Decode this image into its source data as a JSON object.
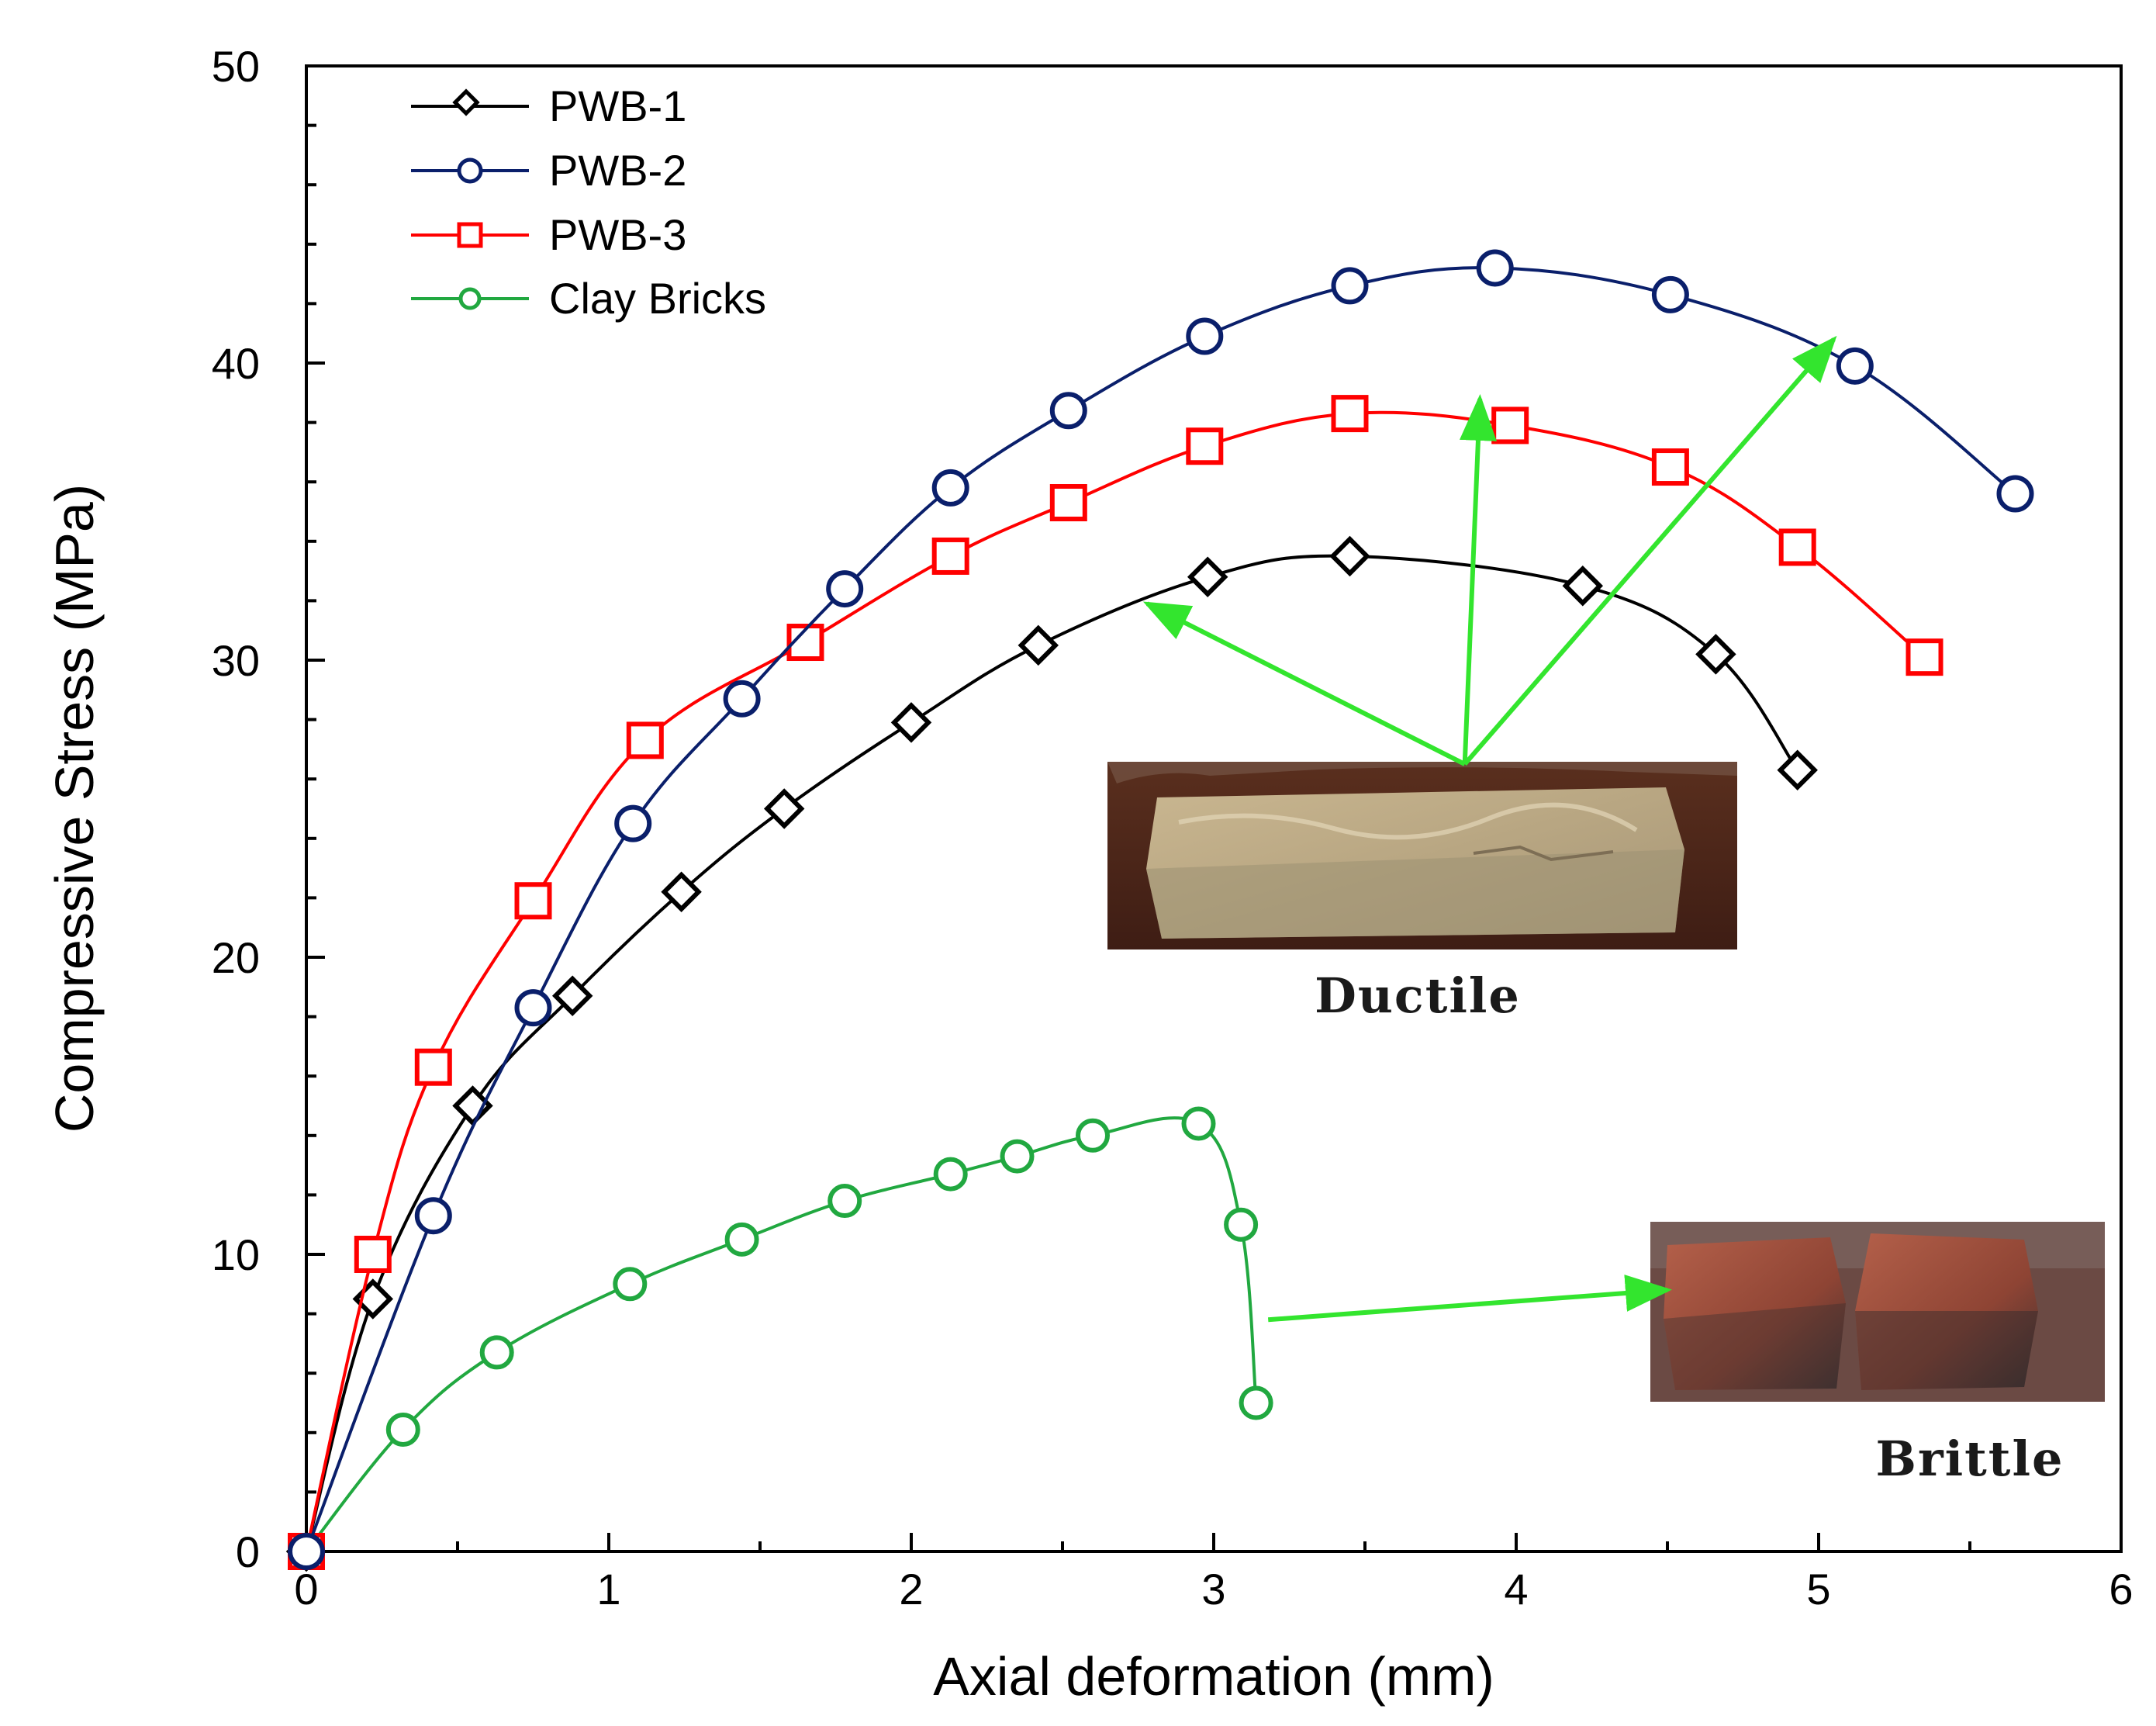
{
  "chart_data": {
    "type": "line",
    "title": "",
    "xlabel": "Axial deformation (mm)",
    "ylabel": "Compressive Stress (MPa)",
    "xlim": [
      0,
      6
    ],
    "ylim": [
      0,
      50
    ],
    "xticks": [
      "0",
      "1",
      "2",
      "3",
      "4",
      "5",
      "6"
    ],
    "yticks": [
      "0",
      "10",
      "20",
      "30",
      "40",
      "50"
    ],
    "grid": false,
    "legend_position": "top-left",
    "series": [
      {
        "name": "PWB-1",
        "color": "#000000",
        "marker": "diamond",
        "points": [
          [
            0,
            0
          ],
          [
            0.22,
            8.5
          ],
          [
            0.55,
            15.0
          ],
          [
            0.88,
            18.7
          ],
          [
            1.24,
            22.2
          ],
          [
            1.58,
            25.0
          ],
          [
            2.0,
            27.9
          ],
          [
            2.42,
            30.5
          ],
          [
            2.98,
            32.8
          ],
          [
            3.45,
            33.5
          ],
          [
            4.22,
            32.5
          ],
          [
            4.66,
            30.2
          ],
          [
            4.93,
            26.3
          ]
        ]
      },
      {
        "name": "PWB-2",
        "color": "#0a1f6b",
        "marker": "circle",
        "points": [
          [
            0,
            0
          ],
          [
            0.42,
            11.3
          ],
          [
            0.75,
            18.3
          ],
          [
            1.08,
            24.5
          ],
          [
            1.44,
            28.7
          ],
          [
            1.78,
            32.4
          ],
          [
            2.13,
            35.8
          ],
          [
            2.52,
            38.4
          ],
          [
            2.97,
            40.9
          ],
          [
            3.45,
            42.6
          ],
          [
            3.93,
            43.2
          ],
          [
            4.51,
            42.3
          ],
          [
            5.12,
            39.9
          ],
          [
            5.65,
            35.6
          ]
        ]
      },
      {
        "name": "PWB-3",
        "color": "#ff0000",
        "marker": "square",
        "points": [
          [
            0,
            0
          ],
          [
            0.22,
            10.0
          ],
          [
            0.42,
            16.3
          ],
          [
            0.75,
            21.9
          ],
          [
            1.12,
            27.3
          ],
          [
            1.65,
            30.6
          ],
          [
            2.13,
            33.5
          ],
          [
            2.52,
            35.3
          ],
          [
            2.97,
            37.2
          ],
          [
            3.45,
            38.3
          ],
          [
            3.98,
            37.9
          ],
          [
            4.51,
            36.5
          ],
          [
            4.93,
            33.8
          ],
          [
            5.35,
            30.1
          ]
        ]
      },
      {
        "name": "Clay Bricks",
        "color": "#21a840",
        "marker": "circle-small",
        "points": [
          [
            0,
            0
          ],
          [
            0.32,
            4.1
          ],
          [
            0.63,
            6.7
          ],
          [
            1.07,
            9.0
          ],
          [
            1.44,
            10.5
          ],
          [
            1.78,
            11.8
          ],
          [
            2.13,
            12.7
          ],
          [
            2.35,
            13.3
          ],
          [
            2.6,
            14.0
          ],
          [
            2.95,
            14.4
          ],
          [
            3.09,
            11.0
          ],
          [
            3.14,
            5.0
          ]
        ]
      }
    ],
    "annotations": [
      {
        "type": "arrow",
        "color": "#33e52e",
        "from": [
          3.83,
          26.5
        ],
        "to": [
          2.78,
          31.9
        ]
      },
      {
        "type": "arrow",
        "color": "#33e52e",
        "from": [
          3.83,
          26.5
        ],
        "to": [
          3.88,
          38.8
        ]
      },
      {
        "type": "arrow",
        "color": "#33e52e",
        "from": [
          3.83,
          26.5
        ],
        "to": [
          5.05,
          40.8
        ]
      },
      {
        "type": "arrow",
        "color": "#33e52e",
        "from": [
          3.18,
          7.8
        ],
        "to": [
          4.5,
          8.8
        ]
      },
      {
        "type": "photo",
        "label": "Ductile"
      },
      {
        "type": "photo",
        "label": "Brittle"
      }
    ]
  }
}
